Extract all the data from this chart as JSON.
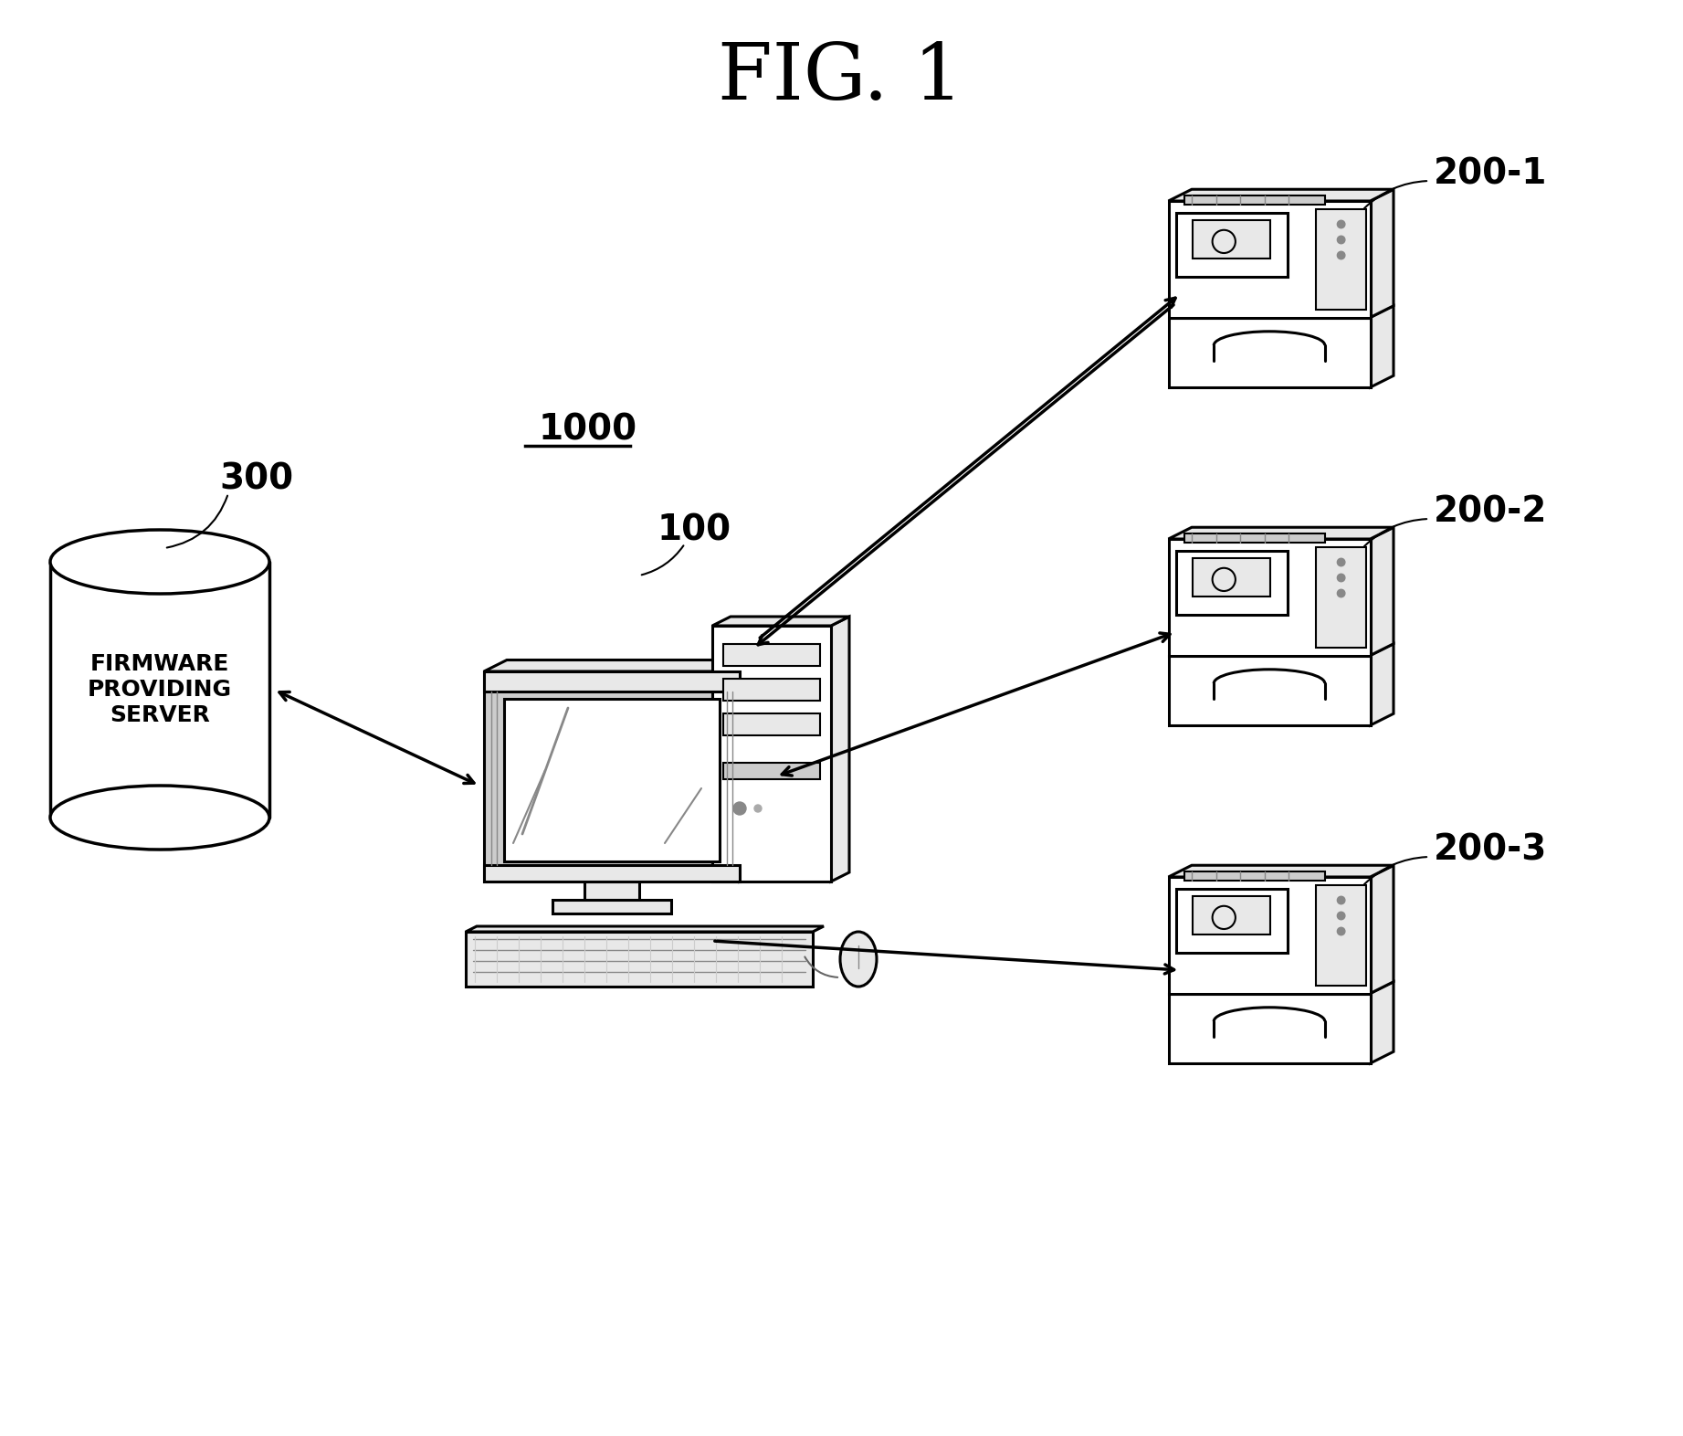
{
  "title": "FIG. 1",
  "title_fontsize": 62,
  "bg_color": "#ffffff",
  "label_1000": "1000",
  "label_100": "100",
  "label_300": "300",
  "label_200_1": "200-1",
  "label_200_2": "200-2",
  "label_200_3": "200-3",
  "server_text": "FIRMWARE\nPROVIDING\nSERVER",
  "figsize": [
    18.43,
    15.72
  ],
  "lw": 2.2,
  "ec": "#000000",
  "fc": "#ffffff",
  "gray1": "#cccccc",
  "gray2": "#e8e8e8",
  "gray3": "#aaaaaa"
}
